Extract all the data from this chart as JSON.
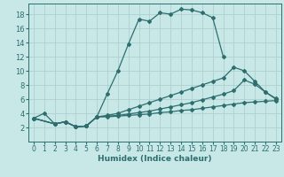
{
  "title": "",
  "xlabel": "Humidex (Indice chaleur)",
  "bg_color": "#c8e8e8",
  "grid_color": "#b0d0d0",
  "line_color": "#2d6e6e",
  "xlim": [
    -0.5,
    23.5
  ],
  "ylim": [
    0,
    19.5
  ],
  "xticks": [
    0,
    1,
    2,
    3,
    4,
    5,
    6,
    7,
    8,
    9,
    10,
    11,
    12,
    13,
    14,
    15,
    16,
    17,
    18,
    19,
    20,
    21,
    22,
    23
  ],
  "yticks": [
    2,
    4,
    6,
    8,
    10,
    12,
    14,
    16,
    18
  ],
  "lines": [
    {
      "x": [
        0,
        1,
        2,
        3,
        4,
        5,
        6,
        7,
        8,
        9,
        10,
        11,
        12,
        13,
        14,
        15,
        16,
        17,
        18
      ],
      "y": [
        3.3,
        4.0,
        2.5,
        2.8,
        2.1,
        2.2,
        3.5,
        6.8,
        10.0,
        13.8,
        17.3,
        17.0,
        18.2,
        18.0,
        18.7,
        18.6,
        18.2,
        17.5,
        12.0
      ]
    },
    {
      "x": [
        0,
        2,
        3,
        4,
        5,
        6,
        7,
        8,
        9,
        10,
        11,
        12,
        13,
        14,
        15,
        16,
        17,
        18,
        19,
        20,
        21,
        22,
        23
      ],
      "y": [
        3.3,
        2.5,
        2.8,
        2.1,
        2.2,
        3.5,
        3.7,
        4.0,
        4.5,
        5.0,
        5.5,
        6.0,
        6.5,
        7.0,
        7.5,
        8.0,
        8.5,
        9.0,
        10.5,
        10.0,
        8.5,
        7.0,
        6.0
      ]
    },
    {
      "x": [
        0,
        2,
        3,
        4,
        5,
        6,
        7,
        8,
        9,
        10,
        11,
        12,
        13,
        14,
        15,
        16,
        17,
        18,
        19,
        20,
        21,
        22,
        23
      ],
      "y": [
        3.3,
        2.5,
        2.8,
        2.1,
        2.2,
        3.5,
        3.6,
        3.7,
        3.9,
        4.1,
        4.3,
        4.6,
        4.9,
        5.2,
        5.5,
        5.9,
        6.3,
        6.7,
        7.2,
        8.7,
        8.1,
        7.0,
        6.1
      ]
    },
    {
      "x": [
        0,
        2,
        3,
        4,
        5,
        6,
        7,
        8,
        9,
        10,
        11,
        12,
        13,
        14,
        15,
        16,
        17,
        18,
        19,
        20,
        21,
        22,
        23
      ],
      "y": [
        3.3,
        2.5,
        2.8,
        2.1,
        2.2,
        3.5,
        3.5,
        3.6,
        3.7,
        3.8,
        3.9,
        4.1,
        4.2,
        4.4,
        4.5,
        4.7,
        4.9,
        5.1,
        5.3,
        5.5,
        5.6,
        5.7,
        5.8
      ]
    }
  ],
  "xlabel_fontsize": 6.5,
  "tick_fontsize": 5.5,
  "marker_size": 2.0,
  "line_width": 0.9
}
